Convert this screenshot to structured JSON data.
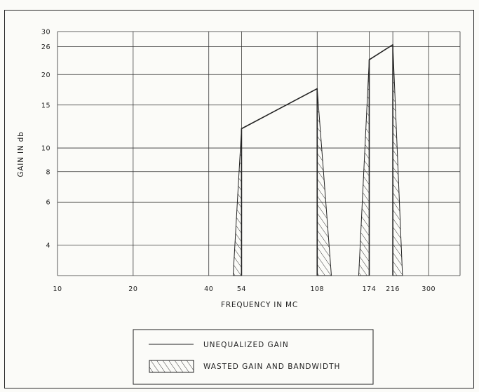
{
  "chart_data": {
    "type": "line",
    "xlabel": "FREQUENCY IN MC",
    "ylabel": "GAIN IN db",
    "x_scale": "log",
    "y_scale": "log",
    "xlim": [
      10,
      400
    ],
    "ylim": [
      3,
      30
    ],
    "x_ticks": [
      "10",
      "20",
      "40",
      "54",
      "108",
      "174",
      "216",
      "300"
    ],
    "x_tick_values": [
      10,
      20,
      40,
      54,
      108,
      174,
      216,
      300
    ],
    "y_ticks": [
      "30",
      "26",
      "20",
      "15",
      "10",
      "8",
      "6",
      "4"
    ],
    "y_tick_values": [
      30,
      26,
      20,
      15,
      10,
      8,
      6,
      4
    ],
    "x_gridlines": [
      10,
      20,
      40,
      54,
      108,
      174,
      216,
      300,
      400
    ],
    "y_gridlines": [
      30,
      26,
      20,
      15,
      10,
      8,
      6,
      4,
      3
    ],
    "grid": true,
    "series": [
      {
        "name": "UNEQUALIZED GAIN",
        "points": [
          [
            54,
            3
          ],
          [
            54,
            12
          ],
          [
            108,
            17.5
          ],
          [
            108,
            3
          ]
        ]
      },
      {
        "name": "UNEQUALIZED GAIN",
        "points": [
          [
            174,
            3
          ],
          [
            174,
            23
          ],
          [
            216,
            26.5
          ],
          [
            216,
            3
          ]
        ]
      }
    ],
    "wasted_regions": [
      {
        "name": "WASTED GAIN AND BANDWIDTH",
        "points": [
          [
            50,
            3
          ],
          [
            54,
            12
          ],
          [
            54,
            3
          ]
        ]
      },
      {
        "name": "WASTED GAIN AND BANDWIDTH",
        "points": [
          [
            108,
            3
          ],
          [
            108,
            17.5
          ],
          [
            123,
            3
          ]
        ]
      },
      {
        "name": "WASTED GAIN AND BANDWIDTH",
        "points": [
          [
            158,
            3
          ],
          [
            174,
            23
          ],
          [
            174,
            3
          ]
        ]
      },
      {
        "name": "WASTED GAIN AND BANDWIDTH",
        "points": [
          [
            216,
            3
          ],
          [
            216,
            26.5
          ],
          [
            236,
            3
          ]
        ]
      }
    ],
    "legend": {
      "placement": "bottom-center",
      "entries": [
        {
          "label": "UNEQUALIZED GAIN",
          "symbol": "line"
        },
        {
          "label": "WASTED GAIN AND BANDWIDTH",
          "symbol": "hatch"
        }
      ]
    }
  }
}
